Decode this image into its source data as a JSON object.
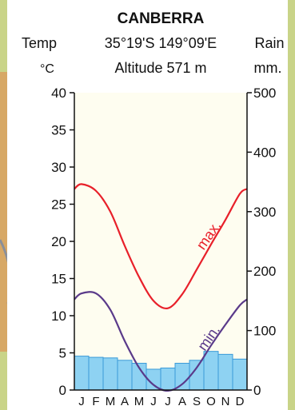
{
  "chart_data": {
    "type": "climograph",
    "title": "CANBERRA",
    "coordinates": "35°19'S 149°09'E",
    "altitude": "Altitude 571 m",
    "left_axis_label": "Temp",
    "left_axis_unit": "°C",
    "right_axis_label": "Rain",
    "right_axis_unit": "mm.",
    "months": [
      "J",
      "F",
      "M",
      "A",
      "M",
      "J",
      "J",
      "A",
      "S",
      "O",
      "N",
      "D"
    ],
    "temp_ticks": [
      0,
      5,
      10,
      15,
      20,
      25,
      30,
      35,
      40
    ],
    "rain_ticks": [
      0,
      100,
      200,
      300,
      400,
      500
    ],
    "temp_range": [
      0,
      40
    ],
    "rain_range": [
      0,
      500
    ],
    "series": [
      {
        "name": "max.",
        "axis": "temp",
        "color": "#e8202a",
        "values": [
          27.7,
          26.8,
          24.0,
          19.4,
          15.2,
          12.0,
          11.0,
          12.9,
          16.2,
          19.6,
          22.9,
          26.4
        ]
      },
      {
        "name": "min.",
        "axis": "temp",
        "color": "#5a3a8a",
        "values": [
          13.0,
          13.0,
          10.8,
          6.6,
          3.0,
          0.7,
          -0.1,
          0.8,
          3.0,
          6.0,
          8.8,
          11.4
        ]
      },
      {
        "name": "Rain",
        "axis": "rain",
        "type": "bar",
        "color": "#8ed2f2",
        "values": [
          57,
          55,
          54,
          50,
          45,
          35,
          37,
          45,
          50,
          65,
          60,
          52
        ]
      }
    ]
  }
}
